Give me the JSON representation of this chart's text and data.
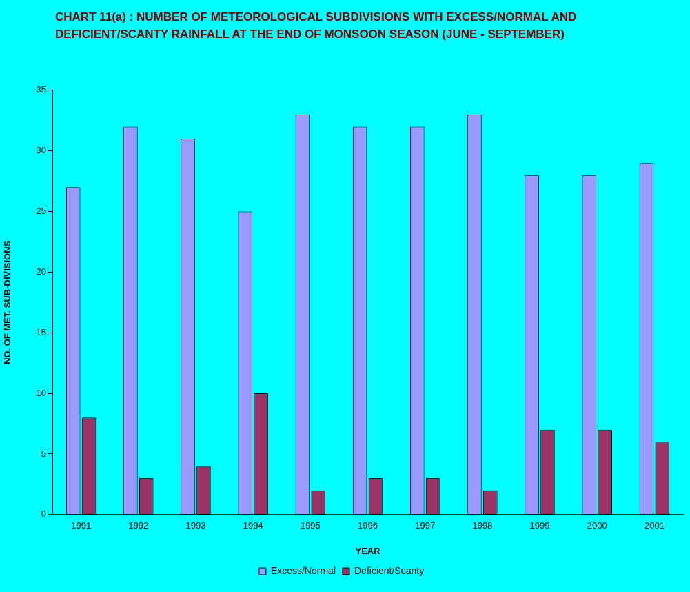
{
  "chart_data": {
    "type": "bar",
    "title": "CHART 11(a) : NUMBER OF METEOROLOGICAL SUBDIVISIONS WITH EXCESS/NORMAL AND DEFICIENT/SCANTY RAINFALL AT THE END OF MONSOON SEASON (JUNE - SEPTEMBER)",
    "xlabel": "YEAR",
    "ylabel": "NO. OF MET. SUB-DIVISIONS",
    "categories": [
      "1991",
      "1992",
      "1993",
      "1994",
      "1995",
      "1996",
      "1997",
      "1998",
      "1999",
      "2000",
      "2001"
    ],
    "series": [
      {
        "name": "Excess/Normal",
        "color": "#9999ff",
        "values": [
          27,
          32,
          31,
          25,
          33,
          32,
          32,
          33,
          28,
          28,
          29
        ]
      },
      {
        "name": "Deficient/Scanty",
        "color": "#993366",
        "values": [
          8,
          3,
          4,
          10,
          2,
          3,
          3,
          2,
          7,
          7,
          6
        ]
      }
    ],
    "ylim": [
      0,
      35
    ],
    "yticks": [
      0,
      5,
      10,
      15,
      20,
      25,
      30,
      35
    ],
    "grid": false,
    "legend": "bottom"
  }
}
